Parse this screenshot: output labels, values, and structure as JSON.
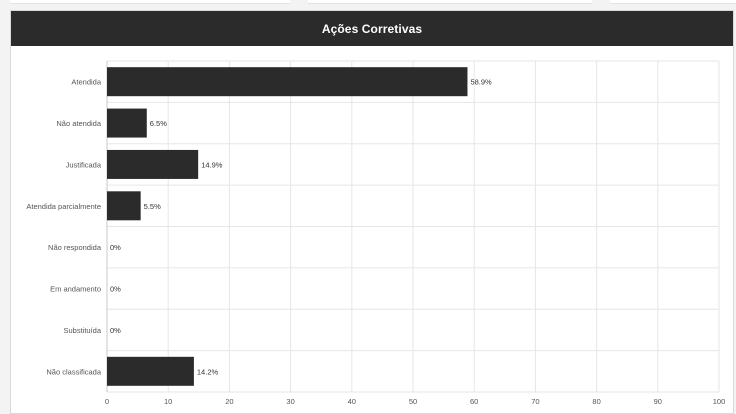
{
  "panel": {
    "title": "Ações Corretivas"
  },
  "chart_data": {
    "type": "bar",
    "orientation": "horizontal",
    "categories": [
      "Atendida",
      "Não atendida",
      "Justificada",
      "Atendida parcialmente",
      "Não respondida",
      "Em andamento",
      "Substituída",
      "Não classificada"
    ],
    "values": [
      58.9,
      6.5,
      14.9,
      5.5,
      0,
      0,
      0,
      14.2
    ],
    "data_labels": [
      "58.9%",
      "6.5%",
      "14.9%",
      "5.5%",
      "0%",
      "0%",
      "0%",
      "14.2%"
    ],
    "xlim": [
      0,
      100
    ],
    "xticks": [
      "0",
      "10",
      "20",
      "30",
      "40",
      "50",
      "60",
      "70",
      "80",
      "90",
      "100"
    ],
    "grid": true,
    "bar_color": "#2b2b2b"
  }
}
